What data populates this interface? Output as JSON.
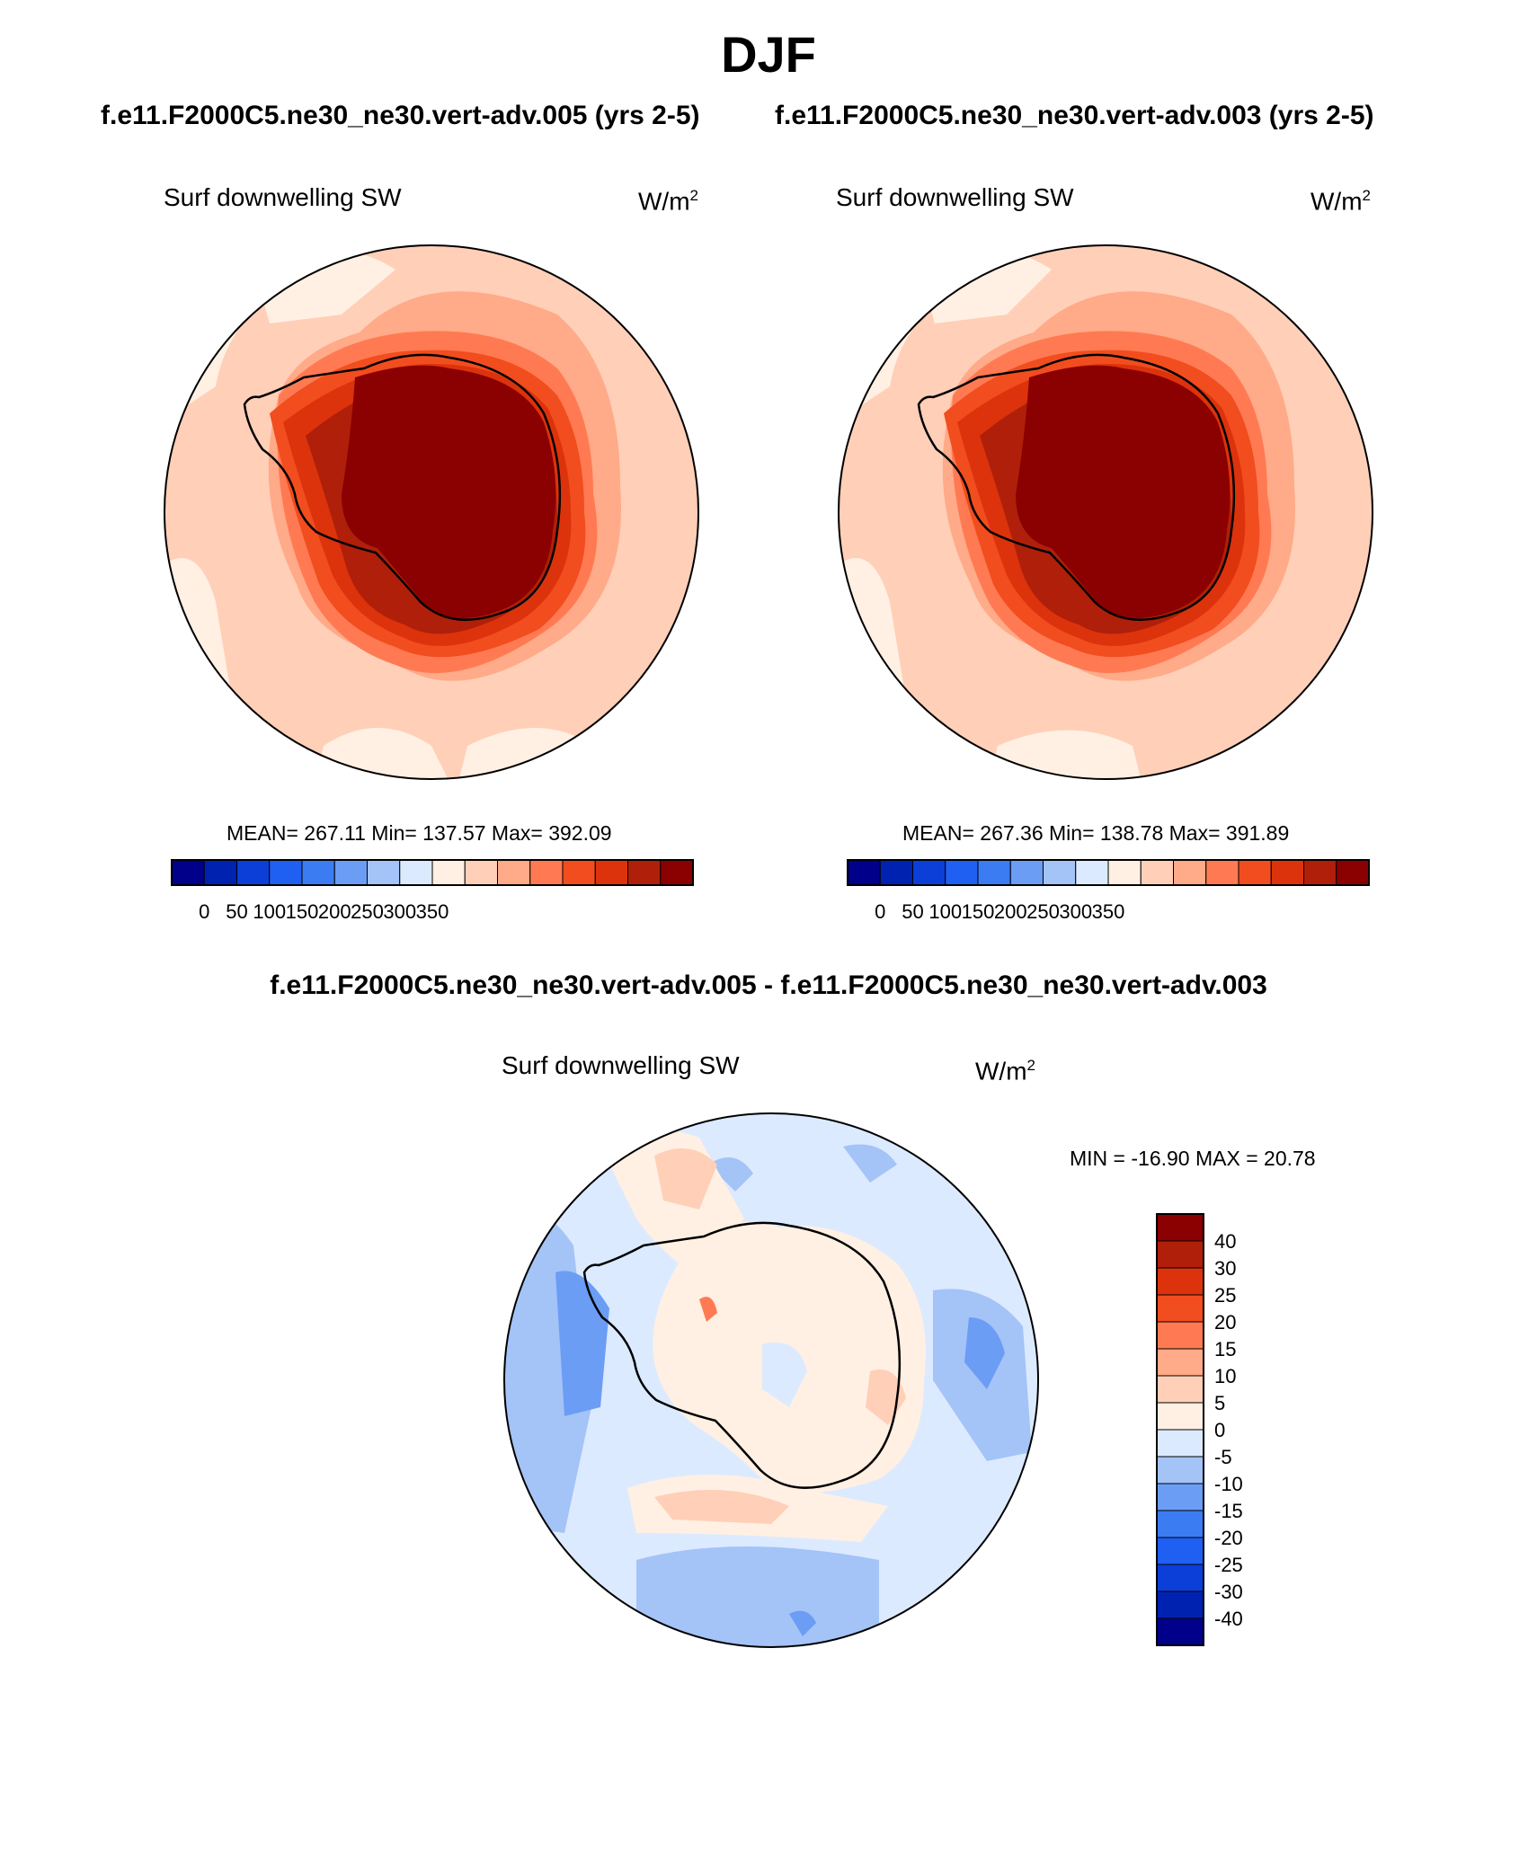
{
  "title": "DJF",
  "panel_a": {
    "case": "f.e11.F2000C5.ne30_ne30.vert-adv.005 (yrs 2-5)",
    "variable": "Surf downwelling SW",
    "units_base": "W/m",
    "units_exp": "2",
    "stats": "MEAN= 267.11  Min= 137.57  Max= 392.09"
  },
  "panel_b": {
    "case": "f.e11.F2000C5.ne30_ne30.vert-adv.003 (yrs 2-5)",
    "variable": "Surf downwelling SW",
    "units_base": "W/m",
    "units_exp": "2",
    "stats": "MEAN= 267.36  Min= 138.78  Max= 391.89"
  },
  "panel_diff": {
    "case": "f.e11.F2000C5.ne30_ne30.vert-adv.005 - f.e11.F2000C5.ne30_ne30.vert-adv.003",
    "variable": "Surf downwelling SW",
    "units_base": "W/m",
    "units_exp": "2",
    "stats": "MIN = -16.90 MAX =  20.78"
  },
  "colorbar_main": {
    "colors": [
      "#00008b",
      "#0022b0",
      "#0c3fd8",
      "#1f5ff2",
      "#3b7cf2",
      "#6b9df5",
      "#a4c3f7",
      "#dceaff",
      "#fff0e3",
      "#ffcfb8",
      "#ffaa88",
      "#ff7a52",
      "#f24d1f",
      "#dc330d",
      "#b01f0a",
      "#8b0000"
    ],
    "labels": [
      "0",
      "50",
      "100",
      "150",
      "200",
      "250",
      "300",
      "350"
    ]
  },
  "colorbar_diff": {
    "colors": [
      "#8b0000",
      "#b01f0a",
      "#dc330d",
      "#f24d1f",
      "#ff7a52",
      "#ffaa88",
      "#ffcfb8",
      "#fff0e3",
      "#dceaff",
      "#a4c3f7",
      "#6b9df5",
      "#3b7cf2",
      "#1f5ff2",
      "#0c3fd8",
      "#0022b0",
      "#00008b"
    ],
    "labels": [
      "40",
      "30",
      "25",
      "20",
      "15",
      "10",
      "5",
      "0",
      "-5",
      "-10",
      "-15",
      "-20",
      "-25",
      "-30",
      "-40"
    ]
  }
}
